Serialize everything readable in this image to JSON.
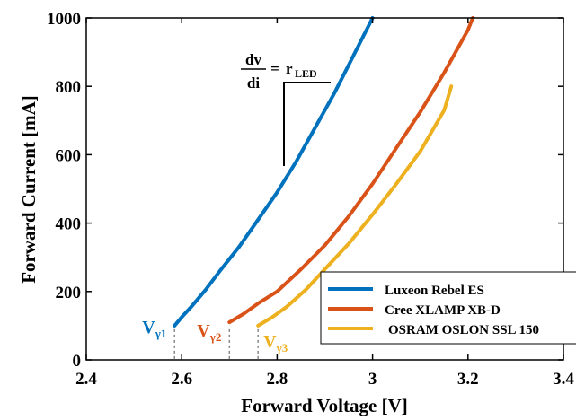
{
  "chart_data": {
    "type": "line",
    "title": "",
    "xlabel": "Forward Voltage [V]",
    "ylabel": "Forward Current [mA]",
    "xlim": [
      2.4,
      3.4
    ],
    "ylim": [
      0,
      1000
    ],
    "xticks": [
      2.4,
      2.6,
      2.8,
      3.0,
      3.2,
      3.4
    ],
    "xtick_labels": [
      "2.4",
      "2.6",
      "2.8",
      "3",
      "3.2",
      "3.4"
    ],
    "yticks": [
      0,
      200,
      400,
      600,
      800,
      1000
    ],
    "ytick_labels": [
      "0",
      "200",
      "400",
      "600",
      "800",
      "1000"
    ],
    "grid": false,
    "legend_position": "bottom-right",
    "series": [
      {
        "name": "Luxeon Rebel ES",
        "color": "#0072BD",
        "x": [
          2.585,
          2.6,
          2.62,
          2.65,
          2.68,
          2.72,
          2.76,
          2.8,
          2.84,
          2.88,
          2.92,
          2.96,
          3.0
        ],
        "y": [
          100,
          125,
          155,
          205,
          260,
          330,
          410,
          490,
          580,
          680,
          780,
          890,
          1000
        ]
      },
      {
        "name": "Cree XLAMP XB-D",
        "color": "#D95319",
        "x": [
          2.7,
          2.73,
          2.76,
          2.8,
          2.85,
          2.9,
          2.95,
          3.0,
          3.05,
          3.1,
          3.15,
          3.2,
          3.21
        ],
        "y": [
          110,
          135,
          165,
          200,
          265,
          335,
          420,
          515,
          620,
          725,
          840,
          965,
          1000
        ]
      },
      {
        "name": "OSRAM OSLON SSL 150",
        "color": "#EDB120",
        "x": [
          2.76,
          2.79,
          2.82,
          2.86,
          2.9,
          2.95,
          3.0,
          3.05,
          3.1,
          3.15,
          3.165
        ],
        "y": [
          100,
          125,
          155,
          205,
          265,
          340,
          425,
          515,
          610,
          730,
          800
        ]
      }
    ],
    "annotations": {
      "vgamma": [
        {
          "base": "V",
          "sub": "γ1",
          "x": 2.585,
          "color": "#0072BD"
        },
        {
          "base": "V",
          "sub": "γ2",
          "x": 2.7,
          "color": "#D95319"
        },
        {
          "base": "V",
          "sub": "γ3",
          "x": 2.76,
          "color": "#EDB120"
        }
      ],
      "slope": {
        "numerator": "dv",
        "denominator": "di",
        "equals": "=",
        "r_base": "r",
        "r_sub": "LED"
      }
    }
  }
}
